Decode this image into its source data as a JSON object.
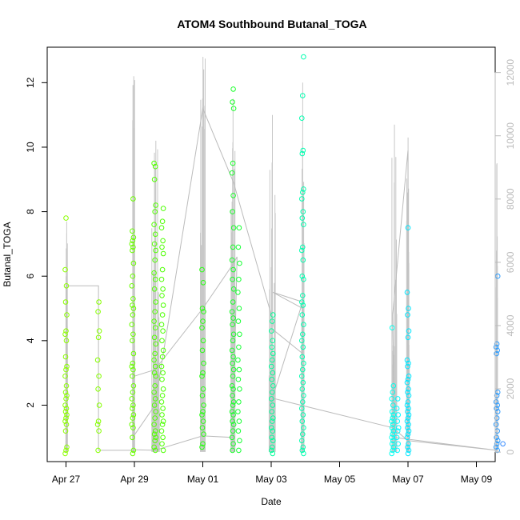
{
  "chart_data": {
    "type": "scatter",
    "title": "ATOM4 Southbound Butanal_TOGA",
    "xlabel": "Date",
    "ylabel": "Butanal_TOGA",
    "x_ticks": [
      "Apr 27",
      "Apr 29",
      "May 01",
      "May 03",
      "May 05",
      "May 07",
      "May 09"
    ],
    "y_ticks": [
      "2",
      "4",
      "6",
      "8",
      "10",
      "12"
    ],
    "y2_ticks": [
      "0",
      "2000",
      "4000",
      "6000",
      "8000",
      "10000",
      "12000"
    ],
    "xlim_days": [
      -0.55,
      12.55
    ],
    "ylim": [
      0.25,
      13.1
    ],
    "y2lim": [
      -300,
      12800
    ],
    "grid": false,
    "series": [
      {
        "day": 0.0,
        "color": "#8cff00",
        "values": [
          0.5,
          0.6,
          0.7,
          1.2,
          1.4,
          1.5,
          1.6,
          1.7,
          1.8,
          1.9,
          2.0,
          2.2,
          2.3,
          2.4,
          2.6,
          2.9,
          3.1,
          3.2,
          3.5,
          4.0,
          4.2,
          4.3,
          4.8,
          5.2,
          5.7,
          6.2,
          7.8
        ]
      },
      {
        "day": 0.95,
        "color": "#86ff00",
        "values": [
          0.6,
          1.2,
          1.4,
          1.5,
          2.0,
          2.5,
          2.9,
          3.4,
          4.1,
          4.3,
          4.9,
          5.2
        ]
      },
      {
        "day": 1.95,
        "color": "#6aff00",
        "values": [
          0.5,
          0.6,
          1.0,
          1.3,
          1.4,
          1.6,
          1.7,
          1.9,
          2.0,
          2.2,
          2.4,
          2.6,
          2.9,
          3.1,
          3.2,
          3.3,
          3.6,
          4.0,
          4.2,
          4.5,
          4.8,
          5.0,
          5.1,
          5.3,
          5.7,
          6.0,
          6.4,
          6.8,
          6.9,
          7.0,
          7.1,
          7.2,
          7.4,
          8.4
        ]
      },
      {
        "day": 2.6,
        "color": "#52ff00",
        "values": [
          0.6,
          0.7,
          0.9,
          1.0,
          1.1,
          1.2,
          1.4,
          1.6,
          1.8,
          2.0,
          2.2,
          2.4,
          2.6,
          2.9,
          3.0,
          3.2,
          3.4,
          3.6,
          3.9,
          4.1,
          4.4,
          4.6,
          4.9,
          5.2,
          5.6,
          5.9,
          6.1,
          6.5,
          6.8,
          7.0,
          7.3,
          7.6,
          8.0,
          8.2,
          9.0,
          9.4,
          9.5
        ]
      },
      {
        "day": 2.82,
        "color": "#4cff00",
        "values": [
          0.6,
          0.8,
          1.0,
          1.2,
          1.4,
          1.5,
          1.7,
          1.9,
          2.1,
          2.3,
          2.5,
          2.8,
          3.0,
          3.2,
          3.5,
          3.7,
          4.0,
          4.3,
          4.5,
          4.8,
          5.1,
          5.4,
          5.6,
          5.9,
          6.2,
          6.7,
          6.9,
          7.1,
          7.5,
          7.7,
          8.1
        ]
      },
      {
        "day": 4.0,
        "color": "#28ff12",
        "values": [
          0.7,
          0.8,
          1.1,
          1.3,
          1.5,
          1.7,
          1.8,
          2.0,
          2.3,
          2.5,
          2.9,
          3.0,
          3.3,
          3.7,
          4.0,
          4.4,
          4.6,
          4.9,
          5.0,
          5.8,
          6.2
        ]
      },
      {
        "day": 4.88,
        "color": "#1aff2a",
        "values": [
          0.6,
          0.8,
          1.0,
          1.2,
          1.4,
          1.5,
          1.7,
          1.8,
          2.0,
          2.1,
          2.3,
          2.5,
          2.6,
          2.9,
          3.1,
          3.3,
          3.5,
          3.7,
          4.0,
          4.2,
          4.5,
          4.7,
          4.9,
          5.2,
          5.6,
          5.9,
          6.2,
          6.5,
          6.9,
          7.5,
          8.0,
          8.5,
          9.2,
          9.5,
          11.2,
          11.4,
          11.8
        ]
      },
      {
        "day": 5.05,
        "color": "#16ff33",
        "values": [
          0.6,
          0.9,
          1.2,
          1.5,
          1.8,
          2.1,
          2.5,
          2.8,
          3.1,
          3.4,
          3.8,
          4.2,
          4.6,
          5.0,
          5.5,
          5.9,
          6.4,
          6.9,
          7.5
        ]
      },
      {
        "day": 6.03,
        "color": "#00ff99",
        "values": [
          0.5,
          0.6,
          0.7,
          0.9,
          1.0,
          1.2,
          1.3,
          1.5,
          1.6,
          1.8,
          2.0,
          2.2,
          2.4,
          2.6,
          2.8,
          3.0,
          3.2,
          3.4,
          3.6,
          3.8,
          4.0,
          4.3,
          4.6,
          4.8
        ]
      },
      {
        "day": 6.92,
        "color": "#00ffb0",
        "values": [
          0.5,
          0.6,
          0.7,
          0.9,
          1.1,
          1.3,
          1.5,
          1.7,
          1.9,
          2.1,
          2.3,
          2.5,
          2.7,
          2.9,
          3.1,
          3.3,
          3.5,
          3.8,
          4.0,
          4.2,
          4.5,
          4.8,
          5.1,
          5.2,
          5.4,
          5.9,
          6.0,
          6.5,
          6.8,
          6.9,
          7.6,
          7.8,
          8.0,
          8.4,
          8.6,
          8.7,
          9.8,
          9.9,
          10.9,
          11.6,
          12.8
        ]
      },
      {
        "day": 9.55,
        "color": "#00ffee",
        "values": [
          0.5,
          0.6,
          0.7,
          0.8,
          0.9,
          1.0,
          1.1,
          1.2,
          1.3,
          1.4,
          1.5,
          1.6,
          1.7,
          1.8,
          2.0,
          2.2,
          2.4,
          2.6,
          4.4
        ]
      },
      {
        "day": 9.7,
        "color": "#00f8ff",
        "values": [
          0.6,
          0.8,
          1.0,
          1.2,
          1.3,
          1.5,
          1.7,
          1.9,
          2.2
        ]
      },
      {
        "day": 10.0,
        "color": "#00e6ff",
        "values": [
          0.5,
          0.6,
          0.7,
          0.8,
          1.0,
          1.1,
          1.2,
          1.3,
          1.4,
          1.5,
          1.6,
          1.7,
          1.8,
          1.9,
          2.0,
          2.1,
          2.3,
          2.4,
          2.5,
          2.7,
          2.8,
          2.9,
          3.2,
          3.3,
          3.4,
          4.1,
          4.3,
          4.8,
          5.0,
          5.5,
          7.5
        ]
      },
      {
        "day": 12.6,
        "color": "#2a9bff",
        "values": [
          0.6,
          0.7,
          0.8,
          0.9,
          1.0,
          1.2,
          1.4,
          1.6,
          1.8,
          1.9,
          2.0,
          2.1,
          2.3,
          2.4,
          3.6,
          3.7,
          3.8,
          3.9,
          6.0
        ]
      },
      {
        "day": 12.75,
        "color": "#3a8dff",
        "values": [
          0.8
        ]
      }
    ],
    "track_line": {
      "color": "#bbbbbb",
      "points": [
        [
          0.0,
          0.6
        ],
        [
          0.0,
          5.7
        ],
        [
          0.95,
          5.7
        ],
        [
          0.95,
          0.6
        ],
        [
          1.95,
          0.6
        ],
        [
          1.95,
          3.0
        ],
        [
          2.0,
          2.9
        ],
        [
          2.6,
          3.1
        ],
        [
          4.0,
          5.0
        ],
        [
          4.9,
          6.4
        ],
        [
          5.0,
          6.6
        ],
        [
          4.88,
          1.0
        ],
        [
          4.0,
          1.05
        ],
        [
          2.6,
          0.6
        ],
        [
          1.95,
          0.62
        ],
        [
          1.95,
          1.0
        ],
        [
          2.6,
          2.0
        ],
        [
          4.0,
          11.2
        ],
        [
          4.9,
          8.9
        ],
        [
          6.03,
          4.7
        ],
        [
          6.1,
          4.3
        ],
        [
          6.92,
          3.6
        ],
        [
          6.92,
          5.0
        ],
        [
          6.05,
          5.5
        ],
        [
          6.92,
          5.2
        ],
        [
          6.0,
          2.1
        ],
        [
          6.1,
          2.2
        ],
        [
          9.55,
          1.3
        ],
        [
          10.0,
          0.9
        ],
        [
          12.6,
          0.6
        ],
        [
          9.6,
          1.0
        ],
        [
          9.55,
          4.8
        ],
        [
          10.0,
          9.9
        ],
        [
          10.0,
          1.2
        ]
      ]
    },
    "spikes": {
      "color": "#c8c8c8",
      "bursts": [
        {
          "day": 0.02,
          "max": 7.7,
          "width": 0.05
        },
        {
          "day": 1.98,
          "max": 12.2,
          "width": 0.06
        },
        {
          "day": 2.62,
          "max": 10.2,
          "width": 0.22
        },
        {
          "day": 4.0,
          "max": 12.8,
          "width": 0.14
        },
        {
          "day": 4.88,
          "max": 11.5,
          "width": 0.12
        },
        {
          "day": 6.03,
          "max": 11.0,
          "width": 0.18
        },
        {
          "day": 6.92,
          "max": 12.0,
          "width": 0.08
        },
        {
          "day": 9.6,
          "max": 10.7,
          "width": 0.14
        },
        {
          "day": 10.0,
          "max": 10.3,
          "width": 0.08
        },
        {
          "day": 12.6,
          "max": 9.5,
          "width": 0.04
        }
      ]
    }
  }
}
